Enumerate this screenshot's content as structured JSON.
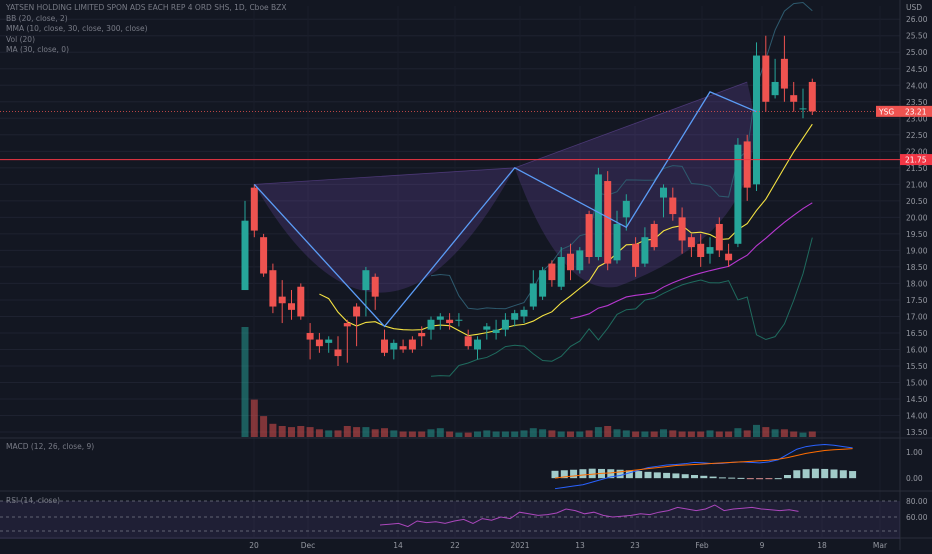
{
  "header": {
    "title": "YATSEN HOLDING LIMITED SPON ADS EACH REP 4 ORD SHS, 1D, Cboe BZX",
    "indicators": [
      "BB (20, close, 2)",
      "MMA (10, close, 30, close, 300, close)",
      "Vol (20)",
      "MA (30, close, 0)"
    ]
  },
  "currency": "USD",
  "macd_label": "MACD (12, 26, close, 9)",
  "rsi_label": "RSI (14, close)",
  "symbol_tag": "YSG",
  "last_price": "23.21",
  "hline_price": "21.75",
  "colors": {
    "up": "#26a69a",
    "down": "#ef5350",
    "pattern": "#5b9cf6",
    "hline": "#f23645",
    "fill": "#7e57c2"
  },
  "chart_data": [
    {
      "type": "candlestick",
      "title": "YATSEN HOLDING LIMITED SPON ADS EACH REP 4 ORD SHS, 1D, Cboe BZX",
      "x_ticks": [
        "20",
        "Dec",
        "14",
        "22",
        "2021",
        "13",
        "23",
        "Feb",
        "9",
        "18",
        "Mar"
      ],
      "y_ticks": [
        13.5,
        14,
        14.5,
        15,
        15.5,
        16,
        16.5,
        17,
        17.5,
        18,
        18.5,
        19,
        19.5,
        20,
        20.5,
        21,
        21.5,
        22,
        22.5,
        23,
        23.5,
        24,
        24.5,
        25,
        25.5,
        26
      ],
      "ylim": [
        13.35,
        26.4
      ],
      "candles": [
        {
          "o": 17.8,
          "h": 20.5,
          "l": 17.8,
          "c": 19.9
        },
        {
          "o": 20.9,
          "h": 21.0,
          "l": 19.4,
          "c": 19.6
        },
        {
          "o": 19.4,
          "h": 19.5,
          "l": 18.2,
          "c": 18.3
        },
        {
          "o": 18.4,
          "h": 18.6,
          "l": 17.1,
          "c": 17.3
        },
        {
          "o": 17.6,
          "h": 18.1,
          "l": 16.8,
          "c": 17.4
        },
        {
          "o": 17.4,
          "h": 17.8,
          "l": 16.9,
          "c": 17.2
        },
        {
          "o": 17.9,
          "h": 18.0,
          "l": 16.9,
          "c": 17.0
        },
        {
          "o": 16.5,
          "h": 16.8,
          "l": 15.7,
          "c": 16.3
        },
        {
          "o": 16.3,
          "h": 16.5,
          "l": 15.9,
          "c": 16.1
        },
        {
          "o": 16.2,
          "h": 16.4,
          "l": 15.9,
          "c": 16.3
        },
        {
          "o": 16.0,
          "h": 16.4,
          "l": 15.5,
          "c": 15.8
        },
        {
          "o": 16.8,
          "h": 16.9,
          "l": 15.6,
          "c": 16.7
        },
        {
          "o": 17.3,
          "h": 17.4,
          "l": 16.1,
          "c": 17.0
        },
        {
          "o": 17.8,
          "h": 18.5,
          "l": 17.0,
          "c": 18.4
        },
        {
          "o": 18.2,
          "h": 18.3,
          "l": 17.2,
          "c": 17.6
        },
        {
          "o": 16.3,
          "h": 16.6,
          "l": 15.8,
          "c": 15.9
        },
        {
          "o": 16.0,
          "h": 16.3,
          "l": 15.7,
          "c": 16.2
        },
        {
          "o": 16.1,
          "h": 16.3,
          "l": 15.9,
          "c": 16.0
        },
        {
          "o": 16.3,
          "h": 16.4,
          "l": 15.9,
          "c": 16.0
        },
        {
          "o": 16.5,
          "h": 16.7,
          "l": 16.1,
          "c": 16.4
        },
        {
          "o": 16.6,
          "h": 17.0,
          "l": 16.3,
          "c": 16.9
        },
        {
          "o": 16.9,
          "h": 17.1,
          "l": 16.6,
          "c": 17.0
        },
        {
          "o": 16.9,
          "h": 17.1,
          "l": 16.6,
          "c": 16.8
        },
        {
          "o": 16.9,
          "h": 17.1,
          "l": 16.7,
          "c": 16.9
        },
        {
          "o": 16.4,
          "h": 16.6,
          "l": 16.0,
          "c": 16.1
        },
        {
          "o": 16.0,
          "h": 16.4,
          "l": 15.7,
          "c": 16.3
        },
        {
          "o": 16.6,
          "h": 16.8,
          "l": 16.3,
          "c": 16.7
        },
        {
          "o": 16.5,
          "h": 16.9,
          "l": 16.3,
          "c": 16.6
        },
        {
          "o": 16.6,
          "h": 17.1,
          "l": 16.4,
          "c": 16.9
        },
        {
          "o": 16.9,
          "h": 17.2,
          "l": 16.7,
          "c": 17.1
        },
        {
          "o": 17.0,
          "h": 17.3,
          "l": 16.8,
          "c": 17.2
        },
        {
          "o": 17.3,
          "h": 18.4,
          "l": 17.2,
          "c": 18.0
        },
        {
          "o": 17.6,
          "h": 18.5,
          "l": 17.5,
          "c": 18.4
        },
        {
          "o": 18.6,
          "h": 18.7,
          "l": 17.9,
          "c": 18.1
        },
        {
          "o": 17.9,
          "h": 19.1,
          "l": 17.8,
          "c": 18.8
        },
        {
          "o": 18.9,
          "h": 19.2,
          "l": 18.1,
          "c": 18.4
        },
        {
          "o": 18.4,
          "h": 19.1,
          "l": 18.3,
          "c": 19.0
        },
        {
          "o": 20.1,
          "h": 20.2,
          "l": 18.6,
          "c": 18.8
        },
        {
          "o": 18.8,
          "h": 21.5,
          "l": 18.7,
          "c": 21.3
        },
        {
          "o": 21.1,
          "h": 21.4,
          "l": 18.4,
          "c": 18.6
        },
        {
          "o": 18.7,
          "h": 20.2,
          "l": 18.6,
          "c": 19.8
        },
        {
          "o": 20.0,
          "h": 20.7,
          "l": 19.6,
          "c": 20.5
        },
        {
          "o": 19.2,
          "h": 19.4,
          "l": 18.2,
          "c": 18.5
        },
        {
          "o": 18.6,
          "h": 19.7,
          "l": 18.5,
          "c": 19.4
        },
        {
          "o": 19.8,
          "h": 19.9,
          "l": 19.0,
          "c": 19.1
        },
        {
          "o": 20.6,
          "h": 21.0,
          "l": 20.0,
          "c": 20.9
        },
        {
          "o": 20.6,
          "h": 20.9,
          "l": 19.9,
          "c": 20.1
        },
        {
          "o": 20.0,
          "h": 20.3,
          "l": 18.9,
          "c": 19.3
        },
        {
          "o": 19.4,
          "h": 19.5,
          "l": 18.8,
          "c": 19.1
        },
        {
          "o": 19.2,
          "h": 19.5,
          "l": 18.5,
          "c": 18.8
        },
        {
          "o": 18.9,
          "h": 19.4,
          "l": 18.6,
          "c": 19.1
        },
        {
          "o": 19.8,
          "h": 20.0,
          "l": 18.8,
          "c": 19.0
        },
        {
          "o": 18.9,
          "h": 19.2,
          "l": 18.5,
          "c": 18.7
        },
        {
          "o": 19.2,
          "h": 22.4,
          "l": 19.1,
          "c": 22.2
        },
        {
          "o": 22.3,
          "h": 22.5,
          "l": 20.5,
          "c": 20.9
        },
        {
          "o": 21.0,
          "h": 25.3,
          "l": 20.8,
          "c": 24.9
        },
        {
          "o": 24.9,
          "h": 25.5,
          "l": 23.2,
          "c": 23.5
        },
        {
          "o": 23.7,
          "h": 24.8,
          "l": 23.6,
          "c": 24.1
        },
        {
          "o": 24.8,
          "h": 25.5,
          "l": 23.5,
          "c": 23.9
        },
        {
          "o": 23.7,
          "h": 24.1,
          "l": 23.2,
          "c": 23.5
        },
        {
          "o": 23.3,
          "h": 23.9,
          "l": 23.0,
          "c": 23.3
        },
        {
          "o": 24.1,
          "h": 24.2,
          "l": 23.1,
          "c": 23.21
        }
      ],
      "pattern_points": [
        {
          "bar": 1,
          "price": 21.0
        },
        {
          "bar": 15,
          "price": 16.7
        },
        {
          "bar": 29,
          "price": 21.5
        },
        {
          "bar": 41,
          "price": 19.7
        },
        {
          "bar": 50,
          "price": 23.8
        },
        {
          "bar": 55,
          "price": 23.2
        }
      ],
      "volume": [
        1.0,
        0.34,
        0.19,
        0.12,
        0.1,
        0.09,
        0.1,
        0.09,
        0.07,
        0.06,
        0.06,
        0.1,
        0.09,
        0.09,
        0.07,
        0.08,
        0.06,
        0.05,
        0.05,
        0.05,
        0.07,
        0.08,
        0.05,
        0.04,
        0.04,
        0.05,
        0.06,
        0.05,
        0.05,
        0.05,
        0.06,
        0.08,
        0.07,
        0.06,
        0.05,
        0.05,
        0.05,
        0.06,
        0.09,
        0.1,
        0.07,
        0.06,
        0.05,
        0.05,
        0.05,
        0.07,
        0.06,
        0.05,
        0.05,
        0.05,
        0.06,
        0.05,
        0.05,
        0.08,
        0.06,
        0.11,
        0.09,
        0.07,
        0.07,
        0.05,
        0.04,
        0.05
      ]
    },
    {
      "type": "bar",
      "title": "MACD (12, 26, close, 9)",
      "y_ticks": [
        0,
        1
      ],
      "ylim": [
        -0.45,
        1.45
      ],
      "histogram": [
        0.28,
        0.3,
        0.32,
        0.34,
        0.36,
        0.35,
        0.34,
        0.32,
        0.3,
        0.27,
        0.24,
        0.22,
        0.2,
        0.18,
        0.15,
        0.12,
        0.09,
        0.06,
        0.03,
        0.02,
        0.01,
        -0.02,
        -0.04,
        -0.03,
        0.0,
        0.12,
        0.3,
        0.34,
        0.36,
        0.35,
        0.33,
        0.3,
        0.27
      ],
      "macd": [
        -0.4,
        -0.35,
        -0.3,
        -0.25,
        -0.15,
        -0.05,
        0.05,
        0.1,
        0.2,
        0.3,
        0.4,
        0.45,
        0.5,
        0.52,
        0.55,
        0.6,
        0.58,
        0.55,
        0.56,
        0.6,
        0.62,
        0.6,
        0.58,
        0.62,
        0.7,
        0.9,
        1.1,
        1.2,
        1.25,
        1.28,
        1.25,
        1.2,
        1.15
      ],
      "signal": [
        0.0,
        0.05,
        0.08,
        0.12,
        0.15,
        0.18,
        0.2,
        0.24,
        0.28,
        0.32,
        0.36,
        0.4,
        0.44,
        0.48,
        0.5,
        0.52,
        0.54,
        0.56,
        0.58,
        0.6,
        0.62,
        0.64,
        0.66,
        0.68,
        0.72,
        0.78,
        0.86,
        0.94,
        1.0,
        1.05,
        1.08,
        1.1,
        1.12
      ]
    },
    {
      "type": "line",
      "title": "RSI (14, close)",
      "y_ticks": [
        60,
        80
      ],
      "ylim": [
        35,
        90
      ],
      "values": [
        50,
        51,
        52,
        48,
        55,
        53,
        54,
        52,
        55,
        57,
        52,
        58,
        56,
        60,
        58,
        66,
        64,
        62,
        63,
        65,
        70,
        68,
        64,
        66,
        62,
        60,
        61,
        62,
        64,
        63,
        66,
        68,
        72,
        70,
        68,
        70,
        75,
        68,
        70,
        71,
        72,
        70,
        69,
        68,
        69,
        67
      ]
    }
  ]
}
